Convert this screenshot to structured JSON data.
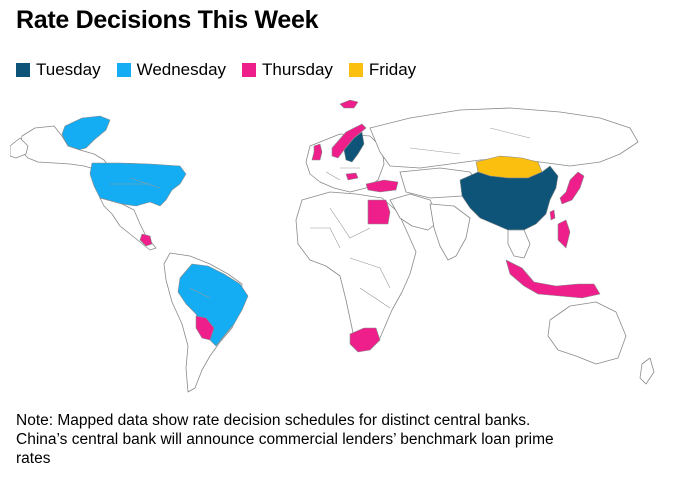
{
  "title": "Rate Decisions This Week",
  "legend": [
    {
      "label": "Tuesday",
      "color": "#0d5478"
    },
    {
      "label": "Wednesday",
      "color": "#14acf2"
    },
    {
      "label": "Thursday",
      "color": "#ee1f8a"
    },
    {
      "label": "Friday",
      "color": "#fbbf10"
    }
  ],
  "note": {
    "line1": "Note: Mapped data show rate decision schedules for distinct central banks.",
    "line2": "China’s central bank will announce commercial lenders’ benchmark loan prime",
    "line3": "rates"
  },
  "map_regions": [
    {
      "name": "Greenland",
      "day": "Wednesday"
    },
    {
      "name": "United States",
      "day": "Wednesday"
    },
    {
      "name": "Brazil",
      "day": "Wednesday"
    },
    {
      "name": "China",
      "day": "Tuesday"
    },
    {
      "name": "Sweden",
      "day": "Tuesday"
    },
    {
      "name": "Mongolia",
      "day": "Friday"
    },
    {
      "name": "Norway",
      "day": "Thursday"
    },
    {
      "name": "United Kingdom",
      "day": "Thursday"
    },
    {
      "name": "Turkey",
      "day": "Thursday"
    },
    {
      "name": "Egypt",
      "day": "Thursday"
    },
    {
      "name": "South Africa",
      "day": "Thursday"
    },
    {
      "name": "Paraguay",
      "day": "Thursday"
    },
    {
      "name": "Nicaragua",
      "day": "Thursday"
    },
    {
      "name": "Japan",
      "day": "Thursday"
    },
    {
      "name": "Taiwan",
      "day": "Thursday"
    },
    {
      "name": "Philippines",
      "day": "Thursday"
    },
    {
      "name": "Indonesia",
      "day": "Thursday"
    },
    {
      "name": "Hungary",
      "day": "Thursday"
    },
    {
      "name": "Iceland",
      "day": "Thursday"
    }
  ]
}
